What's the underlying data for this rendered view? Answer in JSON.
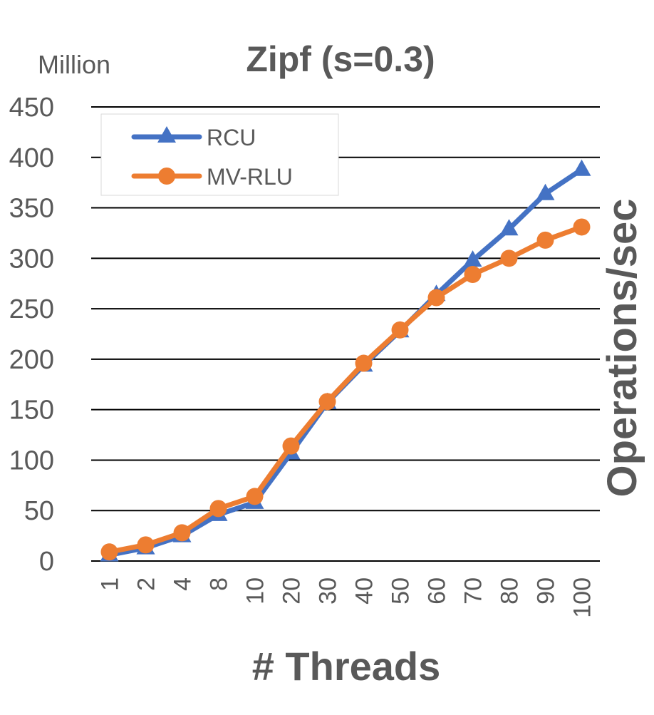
{
  "chart_data": {
    "type": "line",
    "title": "Zipf (s=0.3)",
    "unit_label": "Million",
    "xlabel": "# Threads",
    "ylabel": "Operations/sec",
    "categories": [
      "1",
      "2",
      "4",
      "8",
      "10",
      "20",
      "30",
      "40",
      "50",
      "60",
      "70",
      "80",
      "90",
      "100"
    ],
    "ylim": [
      0,
      450
    ],
    "yticks": [
      0,
      50,
      100,
      150,
      200,
      250,
      300,
      350,
      400,
      450
    ],
    "grid": true,
    "legend_position": "top-left",
    "series": [
      {
        "name": "RCU",
        "color": "#4472C4",
        "marker": "triangle",
        "values": [
          6,
          13,
          25,
          46,
          58,
          107,
          157,
          194,
          228,
          264,
          298,
          329,
          364,
          388
        ]
      },
      {
        "name": "MV-RLU",
        "color": "#ED7D31",
        "marker": "circle",
        "values": [
          9,
          16,
          28,
          52,
          64,
          114,
          158,
          196,
          229,
          261,
          284,
          300,
          318,
          331
        ]
      }
    ]
  }
}
